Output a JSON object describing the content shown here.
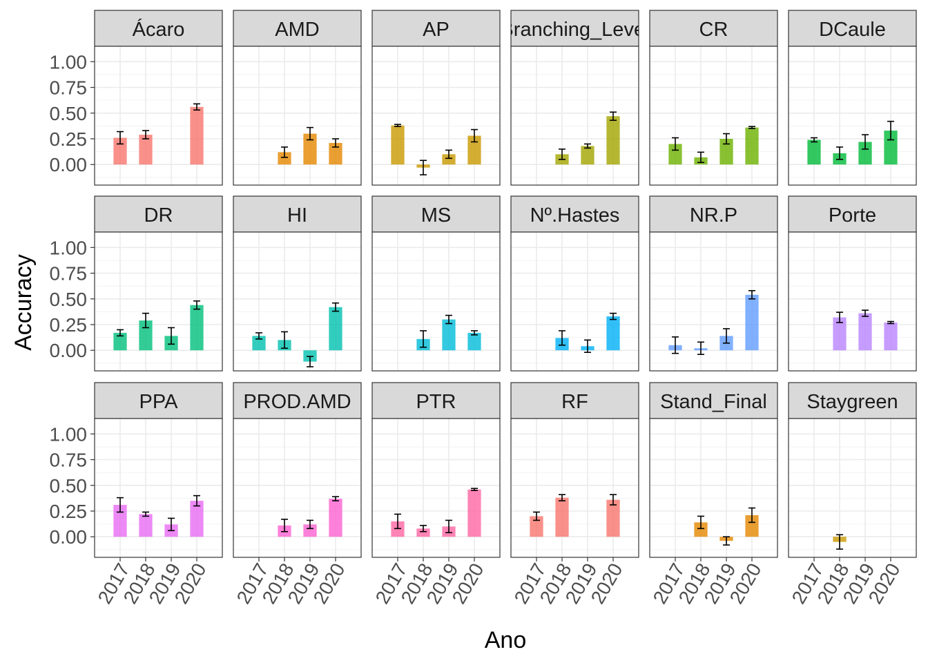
{
  "chart_data": {
    "type": "bar",
    "xlabel": "Ano",
    "ylabel": "Accuracy",
    "categories": [
      "2017",
      "2018",
      "2019",
      "2020"
    ],
    "ylim": [
      -0.2,
      1.15
    ],
    "yticks": [
      0,
      0.25,
      0.5,
      0.75,
      1.0
    ],
    "ytick_labels": [
      "0.00",
      "0.25",
      "0.50",
      "0.75",
      "1.00"
    ],
    "grid": true,
    "legend": "none",
    "panels": [
      {
        "name": "Ácaro",
        "color": "#F8766D",
        "values": [
          0.26,
          0.29,
          null,
          0.56
        ],
        "errors": [
          0.06,
          0.04,
          null,
          0.03
        ]
      },
      {
        "name": "AMD",
        "color": "#E58700",
        "values": [
          null,
          0.12,
          0.3,
          0.21
        ],
        "errors": [
          null,
          0.05,
          0.06,
          0.04
        ]
      },
      {
        "name": "AP",
        "color": "#C99800",
        "values": [
          0.38,
          -0.03,
          0.1,
          0.28
        ],
        "errors": [
          0.01,
          0.07,
          0.04,
          0.06
        ]
      },
      {
        "name": "Branching_Level",
        "color": "#A3A500",
        "values": [
          null,
          0.1,
          0.18,
          0.47
        ],
        "errors": [
          null,
          0.05,
          0.02,
          0.04
        ]
      },
      {
        "name": "CR",
        "color": "#6BB100",
        "values": [
          0.2,
          0.07,
          0.25,
          0.36
        ],
        "errors": [
          0.06,
          0.05,
          0.05,
          0.01
        ]
      },
      {
        "name": "DCaule",
        "color": "#00BA38",
        "values": [
          0.24,
          0.11,
          0.22,
          0.33
        ],
        "errors": [
          0.02,
          0.06,
          0.07,
          0.09
        ]
      },
      {
        "name": "DR",
        "color": "#00BF7D",
        "values": [
          0.17,
          0.29,
          0.14,
          0.44
        ],
        "errors": [
          0.03,
          0.07,
          0.08,
          0.04
        ]
      },
      {
        "name": "HI",
        "color": "#00C0AF",
        "values": [
          0.14,
          0.1,
          -0.11,
          0.42
        ],
        "errors": [
          0.03,
          0.08,
          0.05,
          0.04
        ]
      },
      {
        "name": "MS",
        "color": "#00BCD8",
        "values": [
          null,
          0.11,
          0.3,
          0.17
        ],
        "errors": [
          null,
          0.08,
          0.04,
          0.02
        ]
      },
      {
        "name": "Nº.Hastes",
        "color": "#00B0F6",
        "values": [
          null,
          0.12,
          0.04,
          0.33
        ],
        "errors": [
          null,
          0.07,
          0.06,
          0.03
        ]
      },
      {
        "name": "NR.P",
        "color": "#619CFF",
        "values": [
          0.05,
          0.02,
          0.14,
          0.54
        ],
        "errors": [
          0.08,
          0.06,
          0.07,
          0.04
        ]
      },
      {
        "name": "Porte",
        "color": "#B983FF",
        "values": [
          null,
          0.32,
          0.36,
          0.27
        ],
        "errors": [
          null,
          0.05,
          0.03,
          0.01
        ]
      },
      {
        "name": "PPA",
        "color": "#E76BF3",
        "values": [
          0.31,
          0.22,
          0.12,
          0.35
        ],
        "errors": [
          0.07,
          0.02,
          0.06,
          0.05
        ]
      },
      {
        "name": "PROD.AMD",
        "color": "#FD61D1",
        "values": [
          null,
          0.11,
          0.12,
          0.37
        ],
        "errors": [
          null,
          0.06,
          0.04,
          0.02
        ]
      },
      {
        "name": "PTR",
        "color": "#FF67A4",
        "values": [
          0.15,
          0.08,
          0.1,
          0.46
        ],
        "errors": [
          0.07,
          0.03,
          0.06,
          0.01
        ]
      },
      {
        "name": "RF",
        "color": "#F8766D",
        "values": [
          0.2,
          0.38,
          null,
          0.36
        ],
        "errors": [
          0.04,
          0.03,
          null,
          0.05
        ]
      },
      {
        "name": "Stand_Final",
        "color": "#E58700",
        "values": [
          null,
          0.14,
          -0.04,
          0.21
        ],
        "errors": [
          null,
          0.06,
          0.04,
          0.07
        ]
      },
      {
        "name": "Staygreen",
        "color": "#C99800",
        "values": [
          null,
          -0.05,
          null,
          null
        ],
        "errors": [
          null,
          0.07,
          null,
          null
        ]
      }
    ]
  }
}
